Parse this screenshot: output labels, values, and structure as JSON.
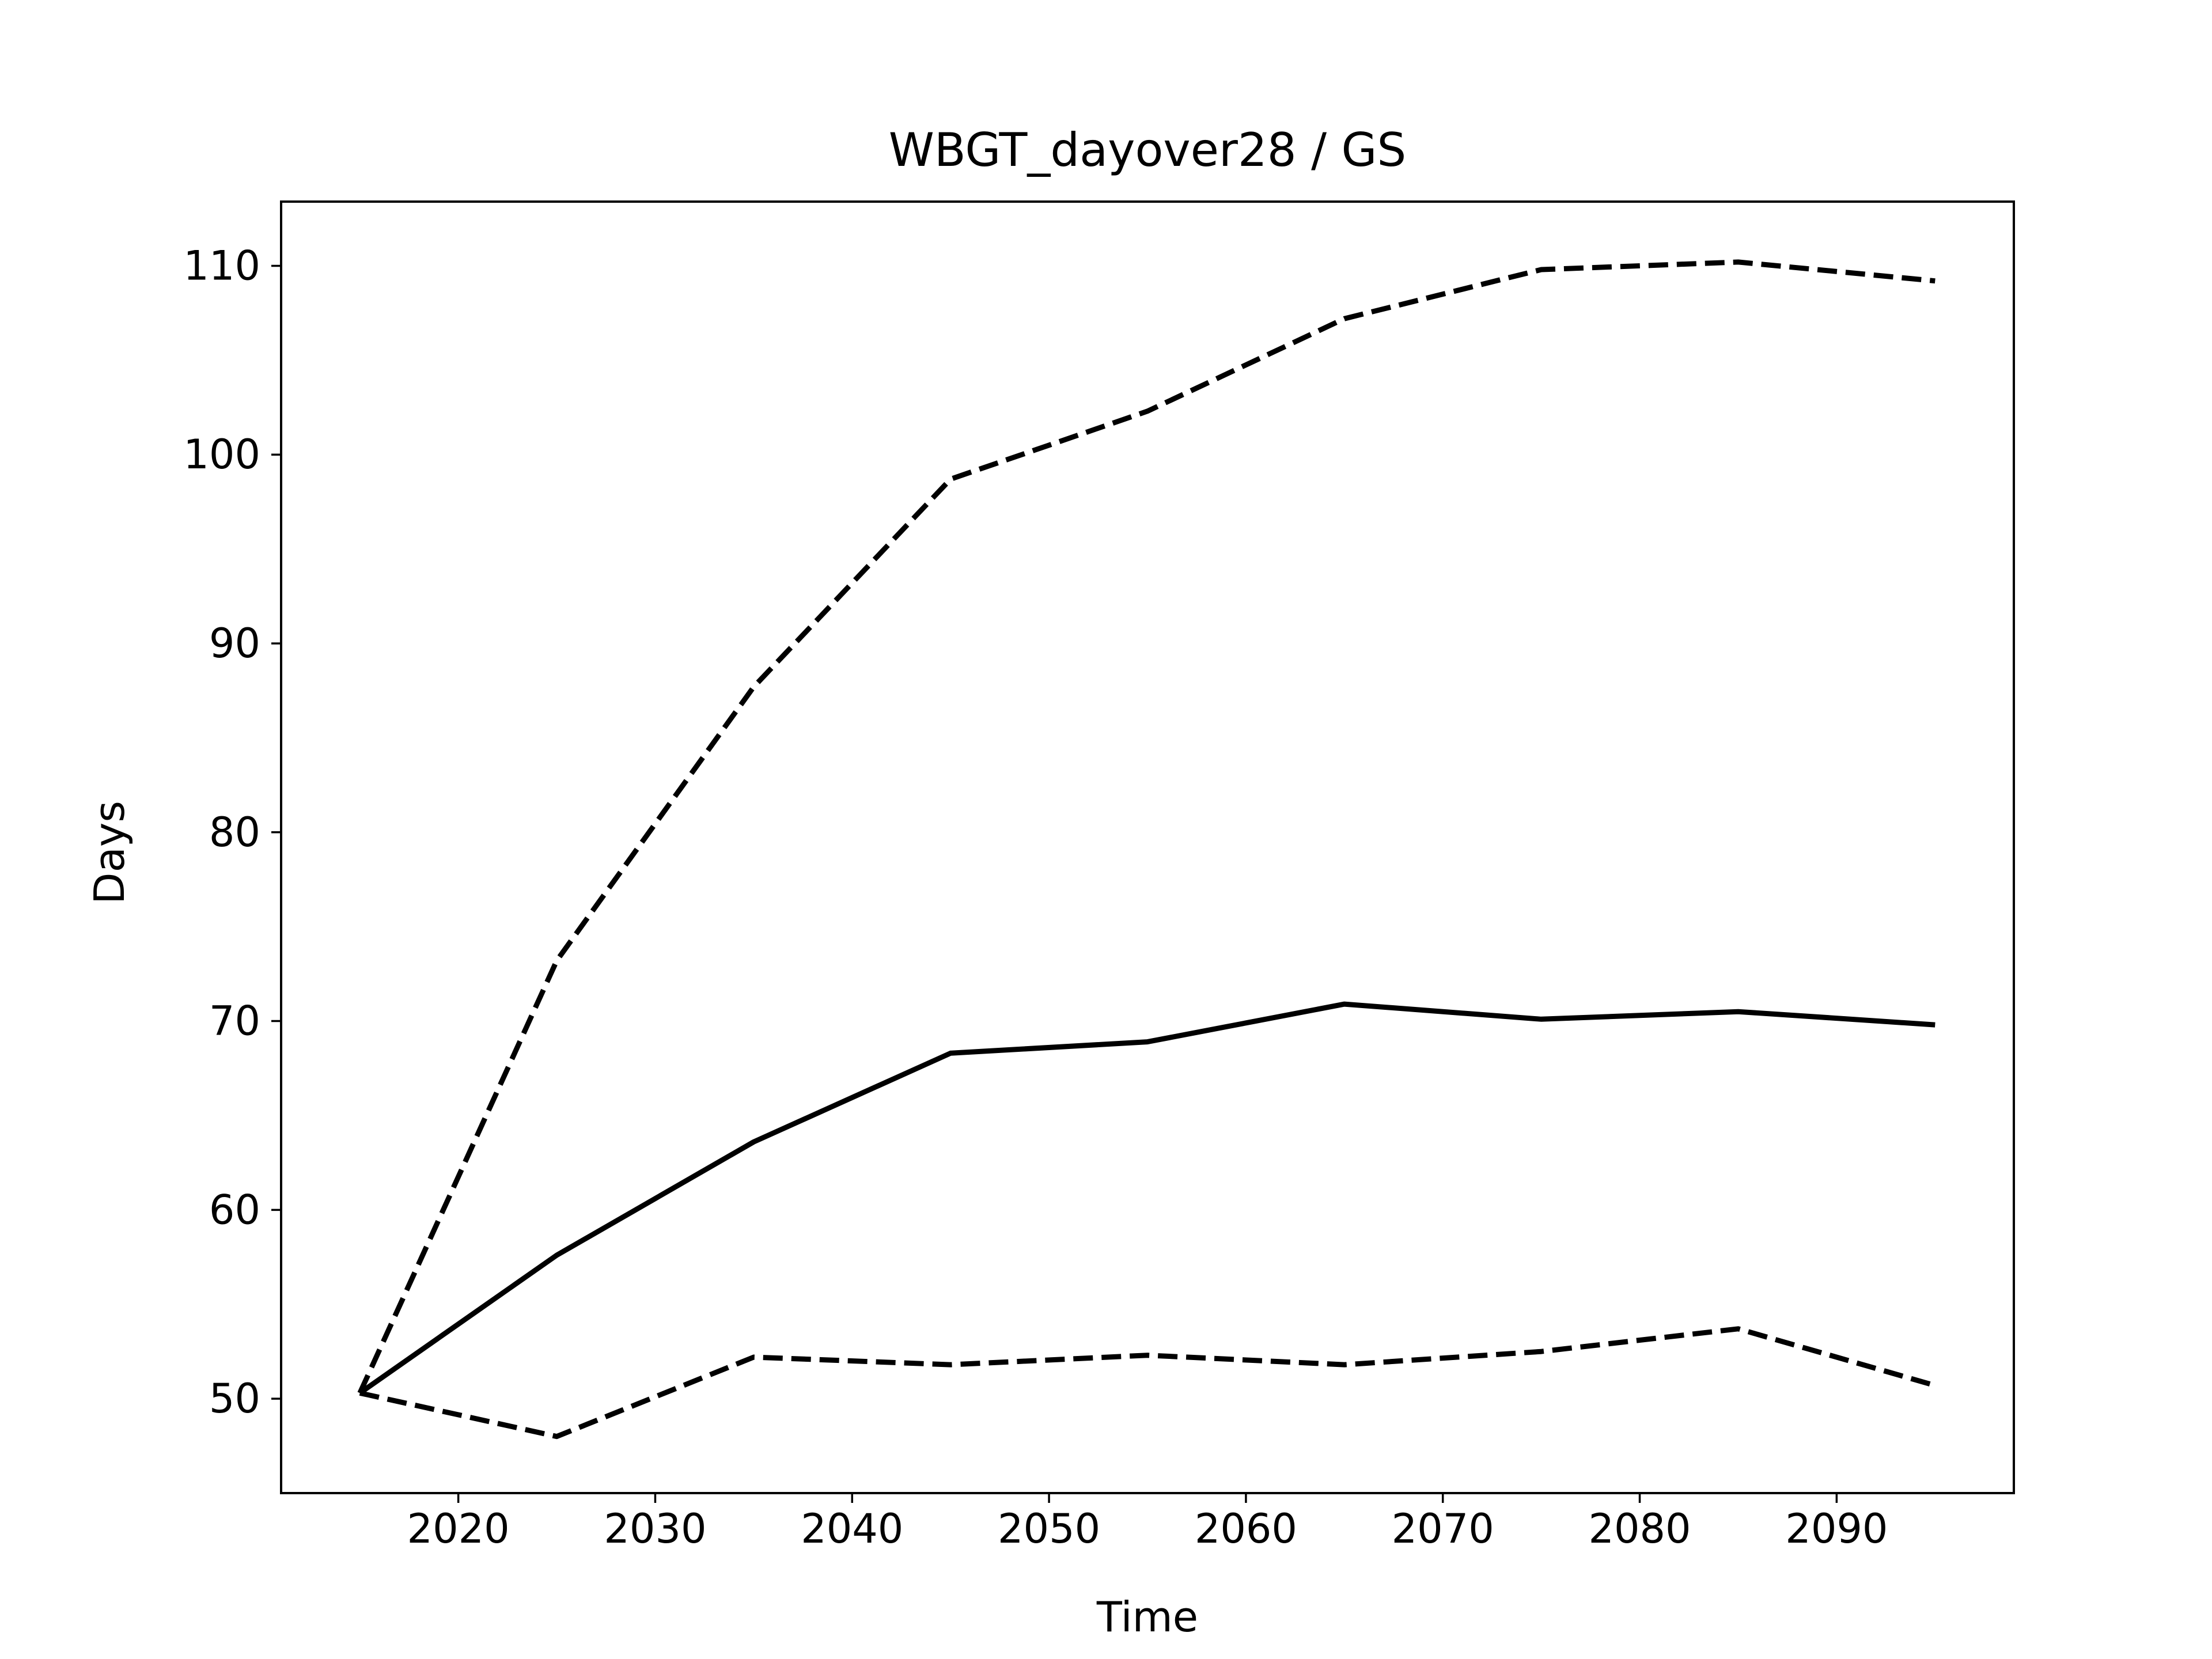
{
  "chart_data": {
    "type": "line",
    "title": "WBGT_dayover28 / GS",
    "xlabel": "Time",
    "ylabel": "Days",
    "x": [
      2015,
      2025,
      2035,
      2045,
      2055,
      2065,
      2075,
      2085,
      2095
    ],
    "xlim": [
      2011,
      2099
    ],
    "ylim": [
      45,
      113.4
    ],
    "xticks": [
      2020,
      2030,
      2040,
      2050,
      2060,
      2070,
      2080,
      2090
    ],
    "yticks": [
      50,
      60,
      70,
      80,
      90,
      100,
      110
    ],
    "grid": false,
    "series": [
      {
        "style": "solid",
        "color": "#000000",
        "values": [
          50.3,
          57.6,
          63.6,
          68.3,
          68.9,
          70.9,
          70.1,
          70.5,
          69.8
        ]
      },
      {
        "style": "dashed",
        "color": "#000000",
        "values": [
          50.3,
          73.2,
          87.7,
          98.7,
          102.3,
          107.2,
          109.8,
          110.2,
          109.2
        ]
      },
      {
        "style": "dashed",
        "color": "#000000",
        "values": [
          50.3,
          48.0,
          52.2,
          51.8,
          52.3,
          51.8,
          52.5,
          53.7,
          50.7
        ]
      }
    ]
  }
}
